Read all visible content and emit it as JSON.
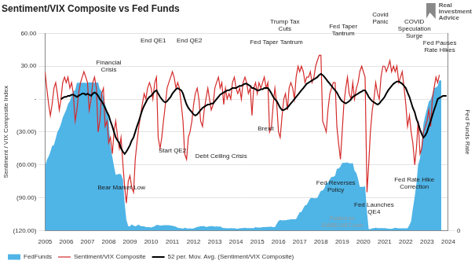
{
  "chart_data": {
    "type": "line",
    "title": "Sentiment/VIX Composite vs Fed Funds",
    "source": [
      "Real",
      "Investment",
      "Advice"
    ],
    "y_label": "Sentiment / VIX Composite Index",
    "y2_label": "Fed Funds Rate",
    "legend": "bottom",
    "grid": true,
    "xlim": [
      2005,
      2024
    ],
    "xticks": [
      2005,
      2006,
      2007,
      2008,
      2009,
      2010,
      2011,
      2012,
      2013,
      2014,
      2015,
      2016,
      2017,
      2018,
      2019,
      2020,
      2021,
      2022,
      2023,
      2024
    ],
    "ylim": [
      -120,
      60
    ],
    "yticks": [
      {
        "value": -120,
        "label": "(120.00)"
      },
      {
        "value": -90,
        "label": "(90.00)"
      },
      {
        "value": -60,
        "label": "(60.00)"
      },
      {
        "value": -30,
        "label": "(30.00)"
      },
      {
        "value": 0,
        "label": "-"
      },
      {
        "value": 30,
        "label": "30.00"
      },
      {
        "value": 60,
        "label": "60.00"
      }
    ],
    "y2lim": [
      0,
      7
    ],
    "y2ticks": [
      0
    ],
    "x": [
      2005.0,
      2005.08,
      2005.17,
      2005.25,
      2005.33,
      2005.42,
      2005.5,
      2005.58,
      2005.67,
      2005.75,
      2005.83,
      2005.92,
      2006.0,
      2006.08,
      2006.17,
      2006.25,
      2006.33,
      2006.42,
      2006.5,
      2006.58,
      2006.67,
      2006.75,
      2006.83,
      2006.92,
      2007.0,
      2007.08,
      2007.17,
      2007.25,
      2007.33,
      2007.42,
      2007.5,
      2007.58,
      2007.67,
      2007.75,
      2007.83,
      2007.92,
      2008.0,
      2008.08,
      2008.17,
      2008.25,
      2008.33,
      2008.42,
      2008.5,
      2008.58,
      2008.67,
      2008.75,
      2008.83,
      2008.92,
      2009.0,
      2009.08,
      2009.17,
      2009.25,
      2009.33,
      2009.42,
      2009.5,
      2009.58,
      2009.67,
      2009.75,
      2009.83,
      2009.92,
      2010.0,
      2010.08,
      2010.17,
      2010.25,
      2010.33,
      2010.42,
      2010.5,
      2010.58,
      2010.67,
      2010.75,
      2010.83,
      2010.92,
      2011.0,
      2011.08,
      2011.17,
      2011.25,
      2011.33,
      2011.42,
      2011.5,
      2011.58,
      2011.67,
      2011.75,
      2011.83,
      2011.92,
      2012.0,
      2012.08,
      2012.17,
      2012.25,
      2012.33,
      2012.42,
      2012.5,
      2012.58,
      2012.67,
      2012.75,
      2012.83,
      2012.92,
      2013.0,
      2013.08,
      2013.17,
      2013.25,
      2013.33,
      2013.42,
      2013.5,
      2013.58,
      2013.67,
      2013.75,
      2013.83,
      2013.92,
      2014.0,
      2014.08,
      2014.17,
      2014.25,
      2014.33,
      2014.42,
      2014.5,
      2014.58,
      2014.67,
      2014.75,
      2014.83,
      2014.92,
      2015.0,
      2015.08,
      2015.17,
      2015.25,
      2015.33,
      2015.42,
      2015.5,
      2015.58,
      2015.67,
      2015.75,
      2015.83,
      2015.92,
      2016.0,
      2016.08,
      2016.17,
      2016.25,
      2016.33,
      2016.42,
      2016.5,
      2016.58,
      2016.67,
      2016.75,
      2016.83,
      2016.92,
      2017.0,
      2017.08,
      2017.17,
      2017.25,
      2017.33,
      2017.42,
      2017.5,
      2017.58,
      2017.67,
      2017.75,
      2017.83,
      2017.92,
      2018.0,
      2018.08,
      2018.17,
      2018.25,
      2018.33,
      2018.42,
      2018.5,
      2018.58,
      2018.67,
      2018.75,
      2018.83,
      2018.92,
      2019.0,
      2019.08,
      2019.17,
      2019.25,
      2019.33,
      2019.42,
      2019.5,
      2019.58,
      2019.67,
      2019.75,
      2019.83,
      2019.92,
      2020.0,
      2020.08,
      2020.17,
      2020.25,
      2020.33,
      2020.42,
      2020.5,
      2020.58,
      2020.67,
      2020.75,
      2020.83,
      2020.92,
      2021.0,
      2021.08,
      2021.17,
      2021.25,
      2021.33,
      2021.42,
      2021.5,
      2021.58,
      2021.67,
      2021.75,
      2021.83,
      2021.92,
      2022.0,
      2022.08,
      2022.17,
      2022.25,
      2022.33,
      2022.42,
      2022.5,
      2022.58,
      2022.67,
      2022.75,
      2022.83,
      2022.92,
      2023.0,
      2023.08,
      2023.17,
      2023.25,
      2023.33,
      2023.42,
      2023.5,
      2023.58,
      2023.67,
      2023.75,
      2023.83,
      2023.92
    ],
    "series": [
      {
        "name": "FedFunds",
        "type": "area",
        "axis": "y2",
        "color": "#4fb4e6",
        "values": [
          2.28,
          2.5,
          2.63,
          2.79,
          3.0,
          3.04,
          3.26,
          3.5,
          3.62,
          3.78,
          4.0,
          4.16,
          4.29,
          4.49,
          4.59,
          4.79,
          4.94,
          4.99,
          5.24,
          5.25,
          5.25,
          5.25,
          5.25,
          5.24,
          5.25,
          5.26,
          5.26,
          5.25,
          5.25,
          5.25,
          5.26,
          5.02,
          4.94,
          4.76,
          4.49,
          4.24,
          3.94,
          2.98,
          2.61,
          2.28,
          1.98,
          2.0,
          2.01,
          2.0,
          1.81,
          0.97,
          0.39,
          0.16,
          0.15,
          0.22,
          0.18,
          0.15,
          0.18,
          0.21,
          0.16,
          0.16,
          0.15,
          0.12,
          0.12,
          0.12,
          0.11,
          0.13,
          0.16,
          0.2,
          0.2,
          0.18,
          0.18,
          0.19,
          0.19,
          0.19,
          0.19,
          0.18,
          0.17,
          0.16,
          0.14,
          0.1,
          0.09,
          0.09,
          0.07,
          0.1,
          0.08,
          0.07,
          0.08,
          0.07,
          0.08,
          0.1,
          0.13,
          0.14,
          0.16,
          0.16,
          0.16,
          0.13,
          0.14,
          0.16,
          0.16,
          0.16,
          0.14,
          0.15,
          0.14,
          0.15,
          0.11,
          0.09,
          0.09,
          0.08,
          0.08,
          0.09,
          0.08,
          0.09,
          0.07,
          0.07,
          0.08,
          0.09,
          0.09,
          0.1,
          0.09,
          0.09,
          0.09,
          0.09,
          0.09,
          0.12,
          0.11,
          0.11,
          0.11,
          0.12,
          0.12,
          0.13,
          0.13,
          0.14,
          0.14,
          0.12,
          0.12,
          0.24,
          0.34,
          0.38,
          0.36,
          0.37,
          0.37,
          0.38,
          0.39,
          0.4,
          0.4,
          0.4,
          0.41,
          0.54,
          0.65,
          0.66,
          0.79,
          0.9,
          0.91,
          1.04,
          1.15,
          1.16,
          1.15,
          1.15,
          1.16,
          1.3,
          1.41,
          1.42,
          1.51,
          1.69,
          1.7,
          1.82,
          1.91,
          1.91,
          1.95,
          2.19,
          2.2,
          2.27,
          2.4,
          2.4,
          2.41,
          2.42,
          2.39,
          2.38,
          2.4,
          2.13,
          2.04,
          1.83,
          1.55,
          1.55,
          1.55,
          1.58,
          0.65,
          0.05,
          0.05,
          0.08,
          0.09,
          0.1,
          0.09,
          0.09,
          0.09,
          0.09,
          0.09,
          0.08,
          0.07,
          0.07,
          0.06,
          0.08,
          0.1,
          0.09,
          0.08,
          0.08,
          0.08,
          0.08,
          0.08,
          0.08,
          0.2,
          0.33,
          0.77,
          1.21,
          1.68,
          2.33,
          2.56,
          3.08,
          3.78,
          4.1,
          4.33,
          4.57,
          4.65,
          4.83,
          5.06,
          5.08,
          5.12,
          5.33,
          5.33,
          null,
          null,
          null
        ]
      },
      {
        "name": "Sentiment/VIX Composite",
        "type": "line",
        "line_style": "solid",
        "color": "#d42a2a",
        "values": [
          25,
          10,
          -5,
          -15,
          -5,
          10,
          15,
          5,
          -10,
          0,
          15,
          20,
          15,
          20,
          10,
          15,
          5,
          -20,
          -10,
          5,
          15,
          20,
          25,
          20,
          15,
          -10,
          0,
          15,
          20,
          10,
          -30,
          -20,
          5,
          10,
          -25,
          -20,
          -40,
          -35,
          -50,
          -30,
          -20,
          -35,
          -45,
          -35,
          -60,
          -80,
          -95,
          -75,
          -70,
          -80,
          -85,
          -55,
          -40,
          -25,
          -15,
          -5,
          5,
          0,
          10,
          15,
          10,
          0,
          15,
          20,
          -35,
          -45,
          -35,
          -20,
          -5,
          10,
          15,
          20,
          25,
          20,
          10,
          15,
          10,
          -5,
          -20,
          -50,
          -55,
          -35,
          -30,
          -20,
          -5,
          5,
          10,
          0,
          -20,
          -25,
          -10,
          0,
          10,
          0,
          -10,
          -5,
          10,
          15,
          20,
          10,
          15,
          -5,
          10,
          0,
          5,
          0,
          15,
          20,
          10,
          5,
          10,
          0,
          15,
          20,
          15,
          5,
          10,
          -15,
          10,
          15,
          5,
          15,
          10,
          15,
          20,
          10,
          15,
          -30,
          -25,
          -5,
          10,
          -5,
          -30,
          -35,
          -15,
          0,
          5,
          -10,
          10,
          15,
          10,
          0,
          20,
          30,
          25,
          30,
          25,
          15,
          20,
          20,
          25,
          15,
          20,
          30,
          35,
          40,
          40,
          -20,
          -25,
          -30,
          -10,
          5,
          10,
          15,
          15,
          -25,
          -40,
          -55,
          -30,
          -5,
          10,
          20,
          5,
          0,
          15,
          0,
          10,
          15,
          25,
          30,
          25,
          20,
          -85,
          -60,
          -30,
          -10,
          0,
          15,
          5,
          0,
          20,
          30,
          30,
          25,
          30,
          35,
          25,
          30,
          25,
          30,
          15,
          20,
          25,
          10,
          -5,
          -25,
          -15,
          -30,
          -40,
          -60,
          -45,
          -20,
          -50,
          -45,
          -30,
          -25,
          -20,
          -10,
          -25,
          0,
          10,
          20,
          15,
          22,
          null,
          null,
          null,
          null
        ]
      },
      {
        "name": "52 per. Mov. Avg. (Sentiment/VIX Composite)",
        "type": "line",
        "line_style": "thick",
        "color": "#000000",
        "values": [
          null,
          null,
          null,
          null,
          null,
          null,
          null,
          null,
          null,
          0,
          1,
          2,
          2,
          3,
          3,
          4,
          4,
          3,
          2,
          3,
          4,
          5,
          5,
          4,
          5,
          4,
          3,
          5,
          6,
          5,
          3,
          0,
          -2,
          -5,
          -8,
          -12,
          -15,
          -20,
          -25,
          -30,
          -35,
          -38,
          -40,
          -45,
          -48,
          -50,
          -48,
          -45,
          -42,
          -38,
          -35,
          -30,
          -25,
          -20,
          -15,
          -10,
          -6,
          -3,
          0,
          2,
          3,
          5,
          7,
          8,
          5,
          2,
          0,
          -2,
          -3,
          -2,
          0,
          2,
          5,
          7,
          9,
          10,
          9,
          8,
          5,
          0,
          -5,
          -8,
          -10,
          -12,
          -14,
          -15,
          -14,
          -12,
          -10,
          -8,
          -7,
          -6,
          -5,
          -5,
          -4,
          -4,
          -2,
          0,
          2,
          4,
          5,
          6,
          7,
          8,
          8,
          9,
          10,
          10,
          10,
          11,
          12,
          12,
          13,
          14,
          14,
          13,
          12,
          10,
          10,
          9,
          8,
          8,
          9,
          9,
          10,
          10,
          10,
          8,
          5,
          2,
          0,
          -2,
          -5,
          -8,
          -10,
          -10,
          -9,
          -8,
          -6,
          -4,
          -2,
          0,
          2,
          4,
          6,
          8,
          10,
          12,
          14,
          15,
          16,
          17,
          18,
          19,
          20,
          22,
          23,
          22,
          20,
          18,
          16,
          14,
          12,
          10,
          8,
          6,
          3,
          0,
          -2,
          -3,
          -4,
          -3,
          -2,
          0,
          2,
          3,
          4,
          5,
          6,
          7,
          8,
          8,
          5,
          2,
          0,
          -2,
          -3,
          -4,
          -5,
          -4,
          -2,
          0,
          2,
          5,
          8,
          10,
          12,
          14,
          15,
          16,
          16,
          15,
          14,
          12,
          10,
          6,
          2,
          -3,
          -8,
          -12,
          -18,
          -22,
          -28,
          -32,
          -35,
          -33,
          -30,
          -25,
          -20,
          -15,
          -10,
          -5,
          0,
          1,
          2,
          3,
          3,
          3
        ]
      }
    ],
    "annotations": [
      {
        "text": [
          "Financial",
          "Crisis"
        ],
        "x": 2008.0,
        "y": 30
      },
      {
        "text": [
          "End QE1"
        ],
        "x": 2010.1,
        "y": 53
      },
      {
        "text": [
          "End QE2"
        ],
        "x": 2011.8,
        "y": 53
      },
      {
        "text": [
          "Fed Taper Tantrum"
        ],
        "x": 2015.9,
        "y": 52
      },
      {
        "text": [
          "Trump Tax",
          "Cuts"
        ],
        "x": 2016.3,
        "y": 67
      },
      {
        "text": [
          "Fed Taper",
          "Tantrum"
        ],
        "x": 2019.05,
        "y": 63
      },
      {
        "text": [
          "Covid",
          "Panic"
        ],
        "x": 2020.8,
        "y": 74
      },
      {
        "text": [
          "COVID",
          "Speculation",
          "Surge"
        ],
        "x": 2022.4,
        "y": 64
      },
      {
        "text": [
          "Fed Pauses",
          "Rate Hikes"
        ],
        "x": 2023.6,
        "y": 48
      },
      {
        "text": [
          "Brexit"
        ],
        "x": 2015.4,
        "y": -27
      },
      {
        "text": [
          "Start QE2"
        ],
        "x": 2011.0,
        "y": -47
      },
      {
        "text": [
          "Debt Ceiling Crisis"
        ],
        "x": 2013.3,
        "y": -52
      },
      {
        "text": [
          "Bear Market Low"
        ],
        "x": 2008.6,
        "y": -81
      },
      {
        "text": [
          "Fed Reverses",
          "Policy"
        ],
        "x": 2018.7,
        "y": -80
      },
      {
        "text": [
          "Fed Launches",
          "QE4"
        ],
        "x": 2020.5,
        "y": -100
      },
      {
        "text": [
          "Fed Rate Hike",
          "Correction"
        ],
        "x": 2022.4,
        "y": -77
      }
    ],
    "watermark": {
      "text": [
        "Posted on",
        "ISABELNET.com"
      ],
      "x": 2019.0,
      "y": -112
    }
  }
}
